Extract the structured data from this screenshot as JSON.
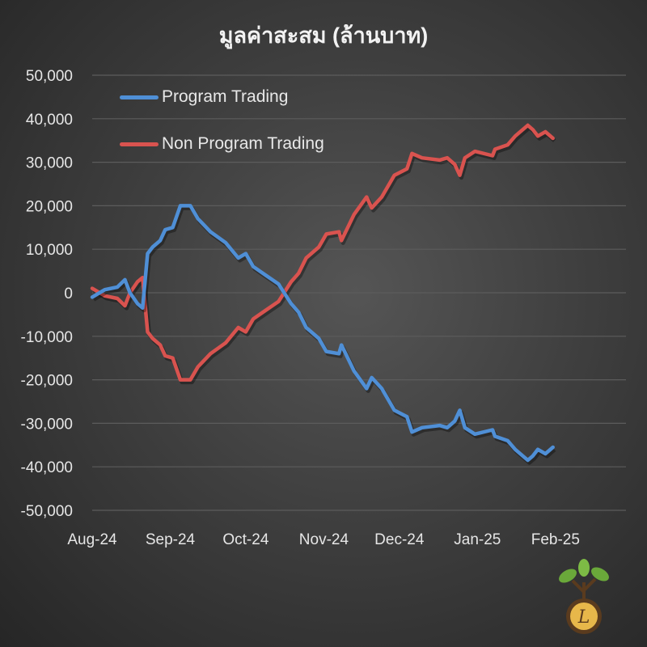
{
  "chart_data": {
    "type": "line",
    "title": "มูลค่าสะสม (ล้านบาท)",
    "xlabel": "",
    "ylabel": "",
    "x_tick_labels": [
      "Aug-24",
      "Sep-24",
      "Oct-24",
      "Nov-24",
      "Dec-24",
      "Jan-25",
      "Feb-25"
    ],
    "x_tick_dates": [
      "2024-08-01",
      "2024-09-01",
      "2024-10-01",
      "2024-11-01",
      "2024-12-01",
      "2025-01-01",
      "2025-02-01"
    ],
    "xlim": [
      "2024-08-01",
      "2025-03-01"
    ],
    "ylim": [
      -50000,
      50000
    ],
    "y_tick_labels": [
      "50,000",
      "40,000",
      "30,000",
      "20,000",
      "10,000",
      "0",
      "-10,000",
      "-20,000",
      "-30,000",
      "-40,000",
      "-50,000"
    ],
    "y_ticks": [
      50000,
      40000,
      30000,
      20000,
      10000,
      0,
      -10000,
      -20000,
      -30000,
      -40000,
      -50000
    ],
    "grid": true,
    "legend": "top-left",
    "x": [
      "2024-08-01",
      "2024-08-06",
      "2024-08-11",
      "2024-08-14",
      "2024-08-16",
      "2024-08-19",
      "2024-08-21",
      "2024-08-23",
      "2024-08-25",
      "2024-08-28",
      "2024-08-30",
      "2024-09-02",
      "2024-09-05",
      "2024-09-09",
      "2024-09-12",
      "2024-09-17",
      "2024-09-23",
      "2024-09-28",
      "2024-10-01",
      "2024-10-04",
      "2024-10-09",
      "2024-10-14",
      "2024-10-19",
      "2024-10-22",
      "2024-10-25",
      "2024-10-30",
      "2024-11-02",
      "2024-11-07",
      "2024-11-08",
      "2024-11-13",
      "2024-11-18",
      "2024-11-20",
      "2024-11-24",
      "2024-11-29",
      "2024-12-04",
      "2024-12-06",
      "2024-12-10",
      "2024-12-17",
      "2024-12-20",
      "2024-12-23",
      "2024-12-25",
      "2024-12-27",
      "2024-12-31",
      "2025-01-07",
      "2025-01-08",
      "2025-01-13",
      "2025-01-16",
      "2025-01-21",
      "2025-01-23",
      "2025-01-25",
      "2025-01-28",
      "2025-01-31"
    ],
    "series": [
      {
        "name": "Program Trading",
        "color": "#4f8fd6",
        "values": [
          -1000,
          700,
          1300,
          3000,
          0,
          -2500,
          -3500,
          9000,
          10500,
          12000,
          14500,
          15000,
          20000,
          20000,
          17000,
          14000,
          11500,
          8000,
          9000,
          6000,
          4000,
          2000,
          -2500,
          -4500,
          -8000,
          -10500,
          -13500,
          -14000,
          -12000,
          -18000,
          -22000,
          -19500,
          -22000,
          -27000,
          -28500,
          -32000,
          -31000,
          -30500,
          -31000,
          -29500,
          -27000,
          -31000,
          -32500,
          -31500,
          -33000,
          -34000,
          -36000,
          -38500,
          -37500,
          -36000,
          -37000,
          -35500
        ]
      },
      {
        "name": "Non Program Trading",
        "color": "#d9534f",
        "values": [
          1000,
          -700,
          -1300,
          -3000,
          0,
          2500,
          3500,
          -9000,
          -10500,
          -12000,
          -14500,
          -15000,
          -20000,
          -20000,
          -17000,
          -14000,
          -11500,
          -8000,
          -9000,
          -6000,
          -4000,
          -2000,
          2500,
          4500,
          8000,
          10500,
          13500,
          14000,
          12000,
          18000,
          22000,
          19500,
          22000,
          27000,
          28500,
          32000,
          31000,
          30500,
          31000,
          29500,
          27000,
          31000,
          32500,
          31500,
          33000,
          34000,
          36000,
          38500,
          37500,
          36000,
          37000,
          35500
        ]
      }
    ]
  },
  "logo": {
    "letter": "L"
  }
}
